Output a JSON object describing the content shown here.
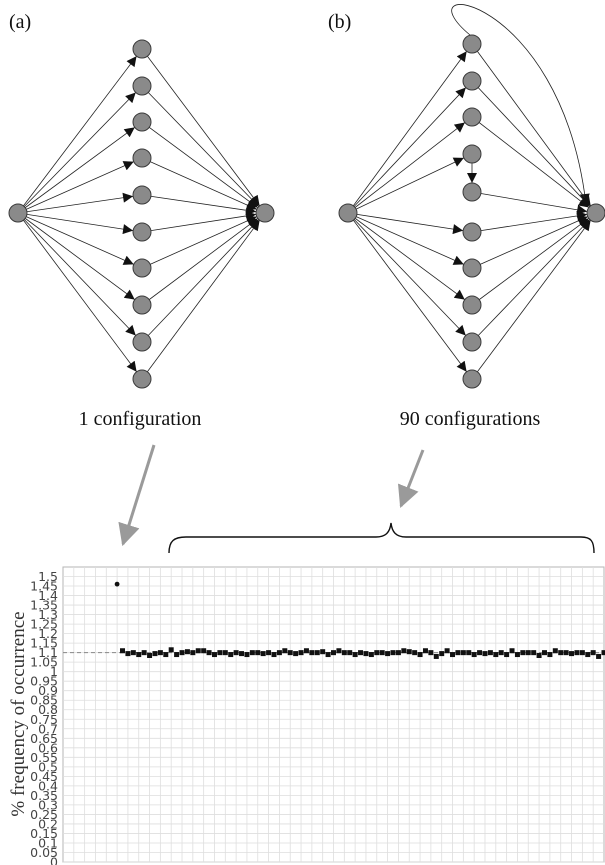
{
  "figure": {
    "panel_a_label": "(a)",
    "panel_b_label": "(b)",
    "caption_a": "1 configuration",
    "caption_b": "90 configurations"
  },
  "graph_a": {
    "middle_nodes": 10,
    "edges": "source → each middle node → sink"
  },
  "graph_b": {
    "middle_nodes": 10,
    "edges": "source → middle nodes → sink, one middle node → next middle node, top node → sink via long arc"
  },
  "colors": {
    "node_fill": "#8a8a8a",
    "edge": "#222222",
    "callout_arrow": "#9a9a9a",
    "marker": "#111111",
    "reference_line": "#888888",
    "grid": "#dedede"
  },
  "chart_data": {
    "type": "scatter",
    "xlabel": "",
    "ylabel": "% frequency of occurrence",
    "ylim": [
      0,
      1.55
    ],
    "yticks": [
      0,
      0.05,
      0.1,
      0.15,
      0.2,
      0.25,
      0.3,
      0.35,
      0.4,
      0.45,
      0.5,
      0.55,
      0.6,
      0.65,
      0.7,
      0.75,
      0.8,
      0.85,
      0.9,
      0.95,
      1,
      1.05,
      1.1,
      1.15,
      1.2,
      1.25,
      1.3,
      1.35,
      1.4,
      1.45,
      1.5
    ],
    "ytick_labels": [
      "0",
      "0.05",
      "0.1",
      "0.15",
      "0.2",
      "0.25",
      "0.3",
      "0.35",
      "0.4",
      "0.45",
      "0.5",
      "0.55",
      "0.6",
      "0.65",
      "0.7",
      "0.75",
      "0.8",
      "0.85",
      "0.9",
      "0.95",
      "1",
      "1.05",
      "1.1",
      "1.15",
      "1.2",
      "1.25",
      "1.3",
      "1.35",
      "1.4",
      "1.45",
      "1.5"
    ],
    "xlim": [
      0,
      100
    ],
    "reference_y": 1.1,
    "grid": true,
    "series": [
      {
        "x": [
          10
        ],
        "y": [
          1.46
        ],
        "marker": "circle"
      },
      {
        "x": [
          11,
          12,
          13,
          14,
          15,
          16,
          17,
          18,
          19,
          20,
          21,
          22,
          23,
          24,
          25,
          26,
          27,
          28,
          29,
          30,
          31,
          32,
          33,
          34,
          35,
          36,
          37,
          38,
          39,
          40,
          41,
          42,
          43,
          44,
          45,
          46,
          47,
          48,
          49,
          50,
          51,
          52,
          53,
          54,
          55,
          56,
          57,
          58,
          59,
          60,
          61,
          62,
          63,
          64,
          65,
          66,
          67,
          68,
          69,
          70,
          71,
          72,
          73,
          74,
          75,
          76,
          77,
          78,
          79,
          80,
          81,
          82,
          83,
          84,
          85,
          86,
          87,
          88,
          89,
          90,
          91,
          92,
          93,
          94,
          95,
          96,
          97,
          98,
          99,
          100
        ],
        "y": [
          1.11,
          1.095,
          1.1,
          1.09,
          1.1,
          1.085,
          1.095,
          1.1,
          1.09,
          1.115,
          1.09,
          1.1,
          1.105,
          1.1,
          1.11,
          1.11,
          1.1,
          1.09,
          1.1,
          1.1,
          1.09,
          1.1,
          1.095,
          1.09,
          1.1,
          1.1,
          1.095,
          1.1,
          1.09,
          1.1,
          1.11,
          1.1,
          1.095,
          1.1,
          1.11,
          1.1,
          1.1,
          1.105,
          1.09,
          1.1,
          1.11,
          1.1,
          1.1,
          1.09,
          1.1,
          1.095,
          1.09,
          1.1,
          1.1,
          1.095,
          1.1,
          1.1,
          1.11,
          1.105,
          1.1,
          1.09,
          1.11,
          1.1,
          1.08,
          1.095,
          1.11,
          1.09,
          1.1,
          1.1,
          1.1,
          1.09,
          1.1,
          1.095,
          1.1,
          1.09,
          1.1,
          1.09,
          1.11,
          1.09,
          1.1,
          1.1,
          1.1,
          1.085,
          1.1,
          1.09,
          1.11,
          1.1,
          1.1,
          1.095,
          1.1,
          1.1,
          1.09,
          1.1,
          1.08,
          1.1
        ],
        "marker": "square"
      }
    ],
    "annotations": [
      {
        "text": "1 configuration",
        "points_to": "x=10"
      },
      {
        "text": "90 configurations",
        "spans": "x=11..100"
      }
    ]
  }
}
